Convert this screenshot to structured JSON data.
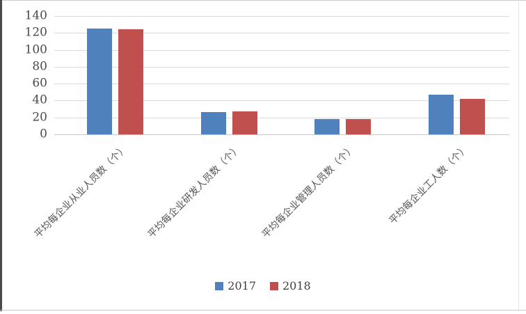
{
  "chart_data": {
    "type": "bar",
    "title": "",
    "xlabel": "",
    "ylabel": "",
    "categories": [
      "平均每企业从业人员数（个）",
      "平均每企业研发人员数（个）",
      "平均每企业管理人员数（个）",
      "平均每企业工人数（个）"
    ],
    "series": [
      {
        "name": "2017",
        "color": "#4F81BD",
        "values": [
          125,
          26,
          18,
          47
        ]
      },
      {
        "name": "2018",
        "color": "#C0504D",
        "values": [
          124,
          27,
          18,
          42
        ]
      }
    ],
    "ylim": [
      0,
      140
    ],
    "yticks": [
      0,
      20,
      40,
      60,
      80,
      100,
      120,
      140
    ],
    "grid": "horizontal",
    "gridline_color": "#D9D9D9",
    "tick_text_color": "#4A4A4A",
    "category_text_color": "#555555",
    "legend_position": "bottom-center",
    "legend": [
      "2017",
      "2018"
    ]
  }
}
